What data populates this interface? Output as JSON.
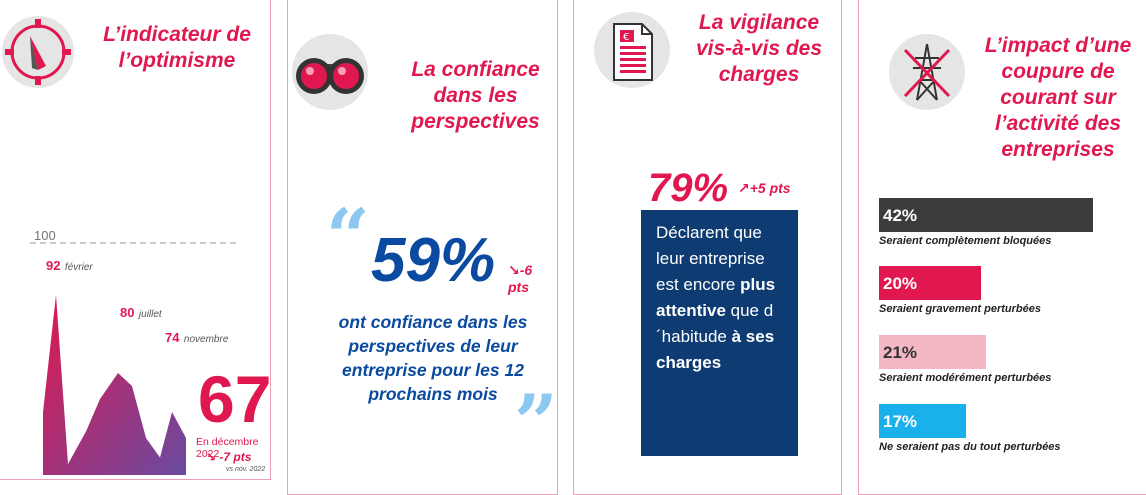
{
  "panel1": {
    "title": "L’indicateur de l’optimisme",
    "icon": "compass-icon",
    "chart_data": {
      "type": "area",
      "ref_line": "100",
      "points": [
        {
          "value": 92,
          "label": "92",
          "month": "février"
        },
        {
          "value": 66,
          "label": "66",
          "month": ""
        },
        {
          "value": 80,
          "label": "80",
          "month": "juillet"
        },
        {
          "value": 74,
          "label": "74",
          "month": "novembre"
        }
      ],
      "colors": [
        "#e0184f",
        "#6a4aa0"
      ]
    },
    "big_value": "67",
    "big_caption": "En décembre 2022",
    "delta": "-7 pts",
    "delta_ref": "vs nov. 2022"
  },
  "panel2": {
    "title": "La confiance dans les perspectives",
    "icon": "binoculars-icon",
    "value": "59%",
    "delta": "-6 pts",
    "text": "ont confiance dans les perspectives de leur entreprise pour les 12 prochains mois"
  },
  "panel3": {
    "title": "La vigilance vis-à-vis des charges",
    "icon": "invoice-icon",
    "value": "79%",
    "delta": "+5 pts",
    "text_1": "Déclarent que leur entreprise est encore ",
    "text_2": "plus attentive",
    "text_3": " que d´habitude ",
    "text_4": "à ses charges",
    "box_color": "#0d3b72"
  },
  "panel4": {
    "title": "L’impact d’une coupure de courant sur l’activité des entreprises",
    "icon": "power-pylon-crossed-icon",
    "bars": [
      {
        "pct": "42%",
        "value": 42,
        "label": "Seraient complètement bloquées",
        "color": "#3c3c3c",
        "text_color": "#ffffff"
      },
      {
        "pct": "20%",
        "value": 20,
        "label": "Seraient gravement perturbées",
        "color": "#e0184f",
        "text_color": "#ffffff"
      },
      {
        "pct": "21%",
        "value": 21,
        "label": "Seraient modérément perturbées",
        "color": "#f4b8c4",
        "text_color": "#333333"
      },
      {
        "pct": "17%",
        "value": 17,
        "label": "Ne seraient pas du tout perturbées",
        "color": "#1ab0ec",
        "text_color": "#ffffff"
      }
    ]
  }
}
